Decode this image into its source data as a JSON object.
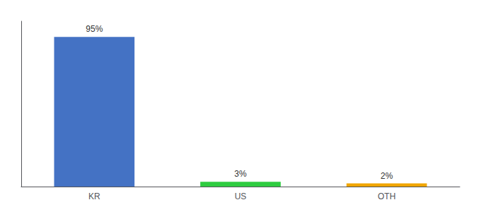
{
  "chart_data": {
    "type": "bar",
    "categories": [
      "KR",
      "US",
      "OTH"
    ],
    "values": [
      95,
      3,
      2
    ],
    "value_labels": [
      "95%",
      "3%",
      "2%"
    ],
    "data_labels": true,
    "colors": [
      "#4472c4",
      "#2ecc40",
      "#f0a500"
    ],
    "ylim": [
      0,
      105
    ],
    "grid": false,
    "tick_labels": "x"
  }
}
